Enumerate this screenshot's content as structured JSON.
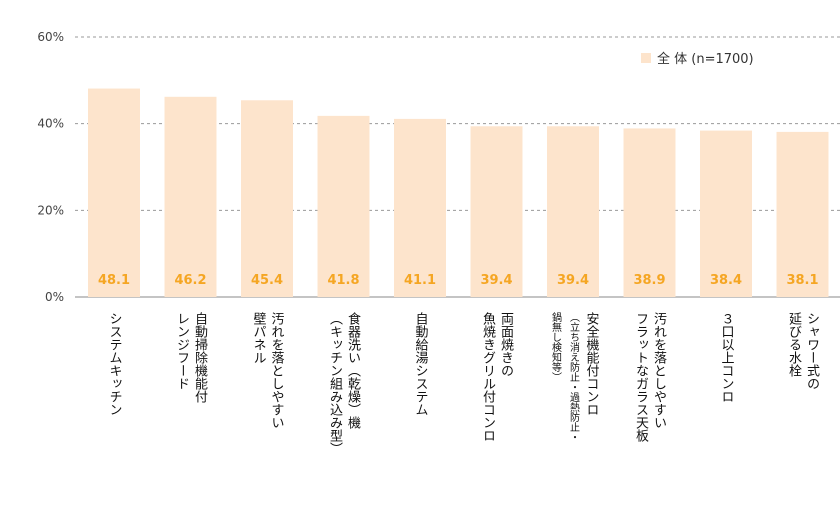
{
  "chart_data": {
    "type": "bar",
    "ylim": [
      0,
      60
    ],
    "yticks": [
      0,
      20,
      40,
      60
    ],
    "ytick_labels": [
      "0%",
      "20%",
      "40%",
      "60%"
    ],
    "grid": true,
    "legend": {
      "position": "top-right",
      "label": "全 体 (n=1700)"
    },
    "colors": {
      "bar": "#fde4cc",
      "value_label": "#f5a623",
      "grid": "#999999"
    },
    "categories": [
      {
        "lines": [
          "システムキッチン"
        ]
      },
      {
        "lines": [
          "自動掃除機能付",
          "レンジフード"
        ]
      },
      {
        "lines": [
          "汚れを落としやすい",
          "壁パネル"
        ]
      },
      {
        "lines": [
          "食器洗い（乾燥）機",
          "（キッチン組み込み型）"
        ]
      },
      {
        "lines": [
          "自動給湯システム"
        ]
      },
      {
        "lines": [
          "両面焼きの",
          "魚焼きグリル付コンロ"
        ]
      },
      {
        "lines": [
          "安全機能付コンロ",
          "（立ち消え防止・過熱防止・",
          "鍋無し検知等）"
        ]
      },
      {
        "lines": [
          "汚れを落としやすい",
          "フラットなガラス天板"
        ]
      },
      {
        "lines": [
          "３口以上コンロ"
        ]
      },
      {
        "lines": [
          "シャワー式の",
          "延びる水栓"
        ]
      }
    ],
    "series": [
      {
        "values": [
          48.1,
          46.2,
          45.4,
          41.8,
          41.1,
          39.4,
          39.4,
          38.9,
          38.4,
          38.1
        ]
      }
    ]
  }
}
